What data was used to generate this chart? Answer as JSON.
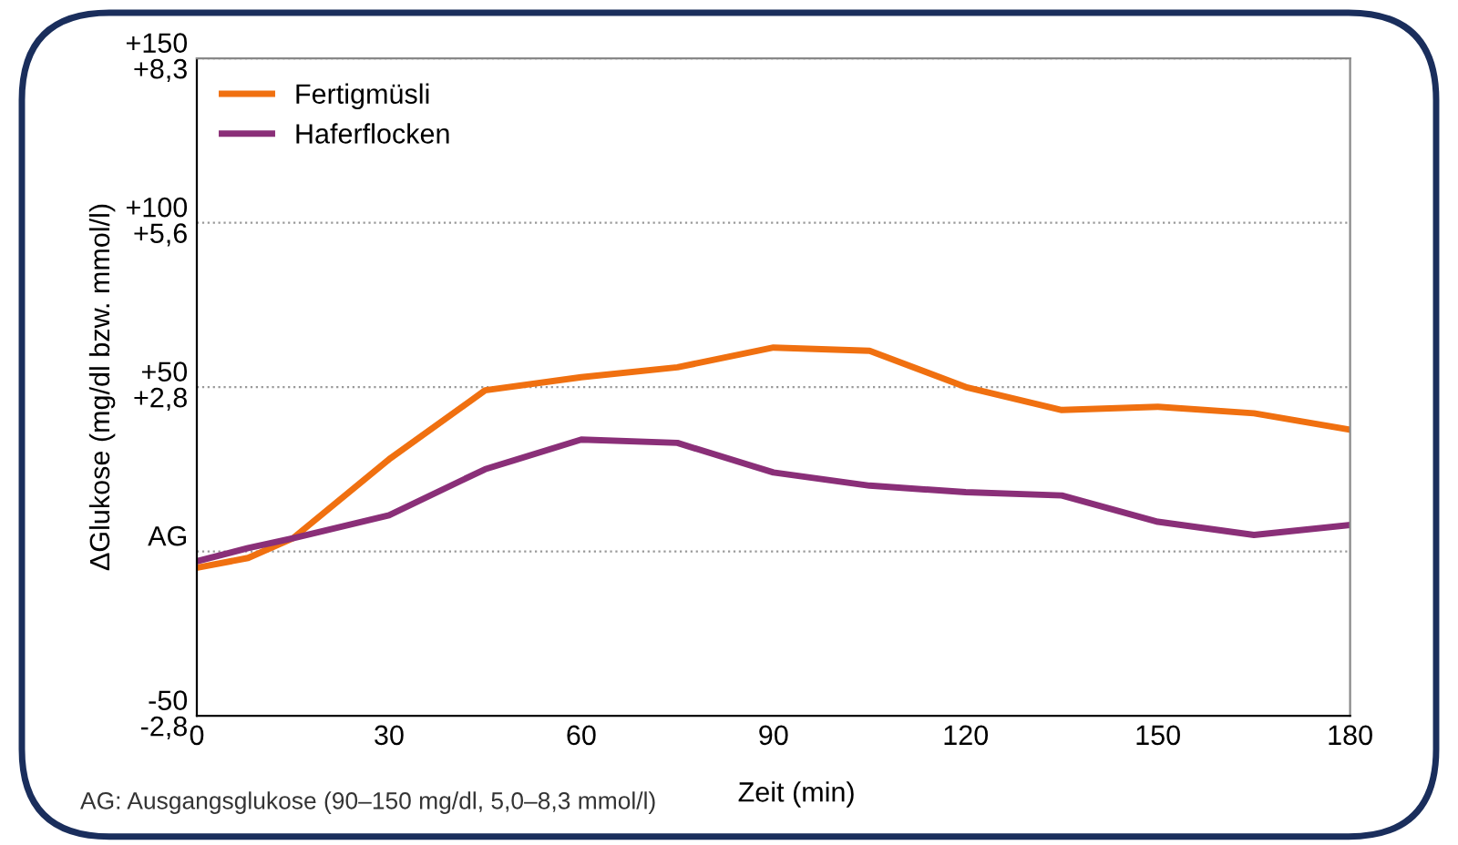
{
  "chart_data": {
    "type": "line",
    "xlabel": "Zeit (min)",
    "ylabel": "ΔGlukose (mg/dl bzw. mmol/l)",
    "x": [
      0,
      8,
      15,
      30,
      45,
      60,
      75,
      90,
      105,
      120,
      135,
      150,
      165,
      180
    ],
    "series": [
      {
        "name": "Fertigmüsli",
        "color": "#f07010",
        "values": [
          -5,
          -2,
          4,
          28,
          49,
          53,
          56,
          62,
          61,
          50,
          43,
          44,
          42,
          37
        ]
      },
      {
        "name": "Haferflocken",
        "color": "#8a2f78",
        "values": [
          -3,
          1,
          4,
          11,
          25,
          34,
          33,
          24,
          20,
          18,
          17,
          9,
          5,
          8
        ]
      }
    ],
    "xlim": [
      0,
      180
    ],
    "xticks": [
      0,
      30,
      60,
      90,
      120,
      150,
      180
    ],
    "ylim": [
      -50,
      150
    ],
    "yticks": [
      -50,
      {
        "value": 0,
        "label": "AG"
      },
      {
        "value": 50,
        "label": "+50"
      },
      {
        "value": 100,
        "label": "+100"
      },
      {
        "value": 150,
        "label": "+150"
      }
    ],
    "y2lim": [
      -2.775,
      8.325
    ],
    "y2ticks": [
      {
        "value": -2.775,
        "label": "-2,8"
      },
      {
        "value": 2.775,
        "label": "+2,8"
      },
      {
        "value": 5.55,
        "label": "+5,6"
      },
      {
        "value": 8.325,
        "label": "+8,3"
      }
    ],
    "grid": "y",
    "legend": "top left",
    "marker": "none",
    "line_style": "solid",
    "annotations": [
      "AG: Ausgangsglukose (90–150 mg/dl, 5,0–8,3 mmol/l)"
    ]
  }
}
